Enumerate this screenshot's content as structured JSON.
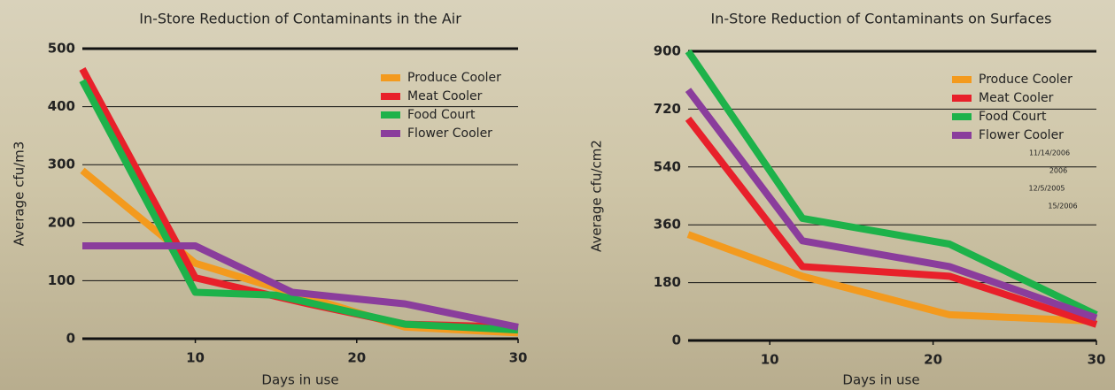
{
  "chart_data": [
    {
      "type": "line",
      "title": "In-Store Reduction of Contaminants in the Air",
      "x_label": "Days in use",
      "y_label": "Average cfu/m3",
      "xlim": [
        3,
        30
      ],
      "xticks": [
        10,
        20,
        30
      ],
      "ylim": [
        0,
        500
      ],
      "yticks": [
        0,
        100,
        200,
        300,
        400,
        500
      ],
      "grid": true,
      "legend": "upper right",
      "series": [
        {
          "name": "Produce Cooler",
          "color": "#f39a1e",
          "x": [
            3,
            10,
            23,
            30
          ],
          "values": [
            290,
            130,
            20,
            10
          ]
        },
        {
          "name": "Meat Cooler",
          "color": "#e8202a",
          "x": [
            3,
            10,
            17,
            23,
            30
          ],
          "values": [
            465,
            105,
            60,
            25,
            20
          ]
        },
        {
          "name": "Food Court",
          "color": "#1db24a",
          "x": [
            3,
            10,
            15,
            23,
            30
          ],
          "values": [
            445,
            80,
            75,
            25,
            15
          ]
        },
        {
          "name": "Flower Cooler",
          "color": "#8a3d9c",
          "x": [
            3,
            10,
            16,
            23,
            30
          ],
          "values": [
            160,
            160,
            80,
            60,
            20
          ]
        }
      ]
    },
    {
      "type": "line",
      "title": "In-Store Reduction of Contaminants on Surfaces",
      "x_label": "Days in use",
      "y_label": "Average cfu/cm2",
      "xlim": [
        5,
        30
      ],
      "xticks": [
        10,
        20,
        30
      ],
      "ylim": [
        0,
        900
      ],
      "yticks": [
        0,
        180,
        360,
        540,
        720,
        900
      ],
      "grid": true,
      "legend": "upper right",
      "annotations": [
        "11/14/2006",
        "2006",
        "12/5/2005",
        "15/2006"
      ],
      "series": [
        {
          "name": "Produce Cooler",
          "color": "#f39a1e",
          "x": [
            5,
            12,
            21,
            30
          ],
          "values": [
            330,
            200,
            80,
            60
          ]
        },
        {
          "name": "Meat Cooler",
          "color": "#e8202a",
          "x": [
            5,
            12,
            21,
            30
          ],
          "values": [
            690,
            230,
            200,
            50
          ]
        },
        {
          "name": "Food Court",
          "color": "#1db24a",
          "x": [
            5,
            12,
            21,
            30
          ],
          "values": [
            900,
            380,
            300,
            80
          ]
        },
        {
          "name": "Flower Cooler",
          "color": "#8a3d9c",
          "x": [
            5,
            12,
            21,
            30
          ],
          "values": [
            780,
            310,
            230,
            70
          ]
        }
      ]
    }
  ]
}
